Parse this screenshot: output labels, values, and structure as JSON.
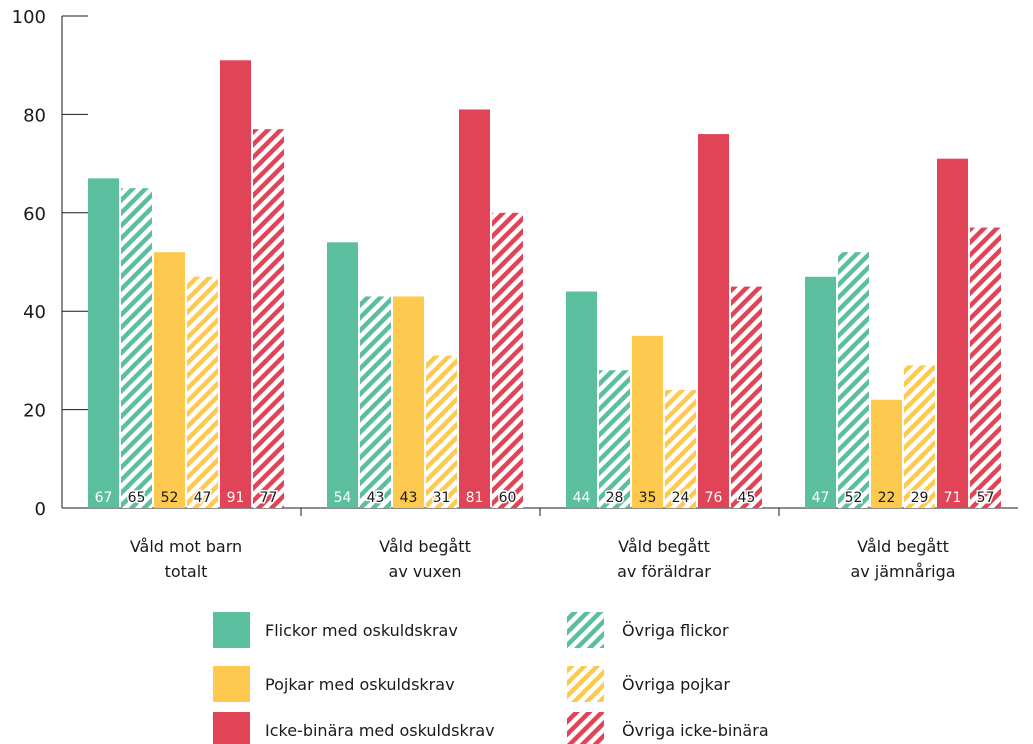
{
  "chart_data": {
    "type": "bar",
    "categories": [
      [
        "Våld mot barn",
        "totalt"
      ],
      [
        "Våld begått",
        "av vuxen"
      ],
      [
        "Våld begått",
        "av föräldrar"
      ],
      [
        "Våld begått",
        "av jämnåriga"
      ]
    ],
    "series": [
      {
        "name": "Flickor med oskuldskrav",
        "values": [
          67,
          54,
          44,
          47
        ],
        "color": "#5bbf9f",
        "hatched": false,
        "label_color": "#ffffff"
      },
      {
        "name": "Övriga flickor",
        "values": [
          65,
          43,
          28,
          52
        ],
        "color": "#5bbf9f",
        "hatched": true,
        "label_color": "#1a1a1a"
      },
      {
        "name": "Pojkar med oskuldskrav",
        "values": [
          52,
          43,
          35,
          22
        ],
        "color": "#fdc94e",
        "hatched": false,
        "label_color": "#1a1a1a"
      },
      {
        "name": "Övriga pojkar",
        "values": [
          47,
          31,
          24,
          29
        ],
        "color": "#fdc94e",
        "hatched": true,
        "label_color": "#1a1a1a"
      },
      {
        "name": "Icke-binära med oskuldskrav",
        "values": [
          91,
          81,
          76,
          71
        ],
        "color": "#e04456",
        "hatched": false,
        "label_color": "#ffffff"
      },
      {
        "name": "Övriga icke-binära",
        "values": [
          77,
          60,
          45,
          57
        ],
        "color": "#e04456",
        "hatched": true,
        "label_color": "#1a1a1a"
      }
    ],
    "yticks": [
      0,
      20,
      40,
      60,
      80,
      100
    ],
    "ylim": [
      0,
      100
    ],
    "title": "",
    "xlabel": "",
    "ylabel": "",
    "grid": false,
    "legend_placement": "bottom"
  }
}
